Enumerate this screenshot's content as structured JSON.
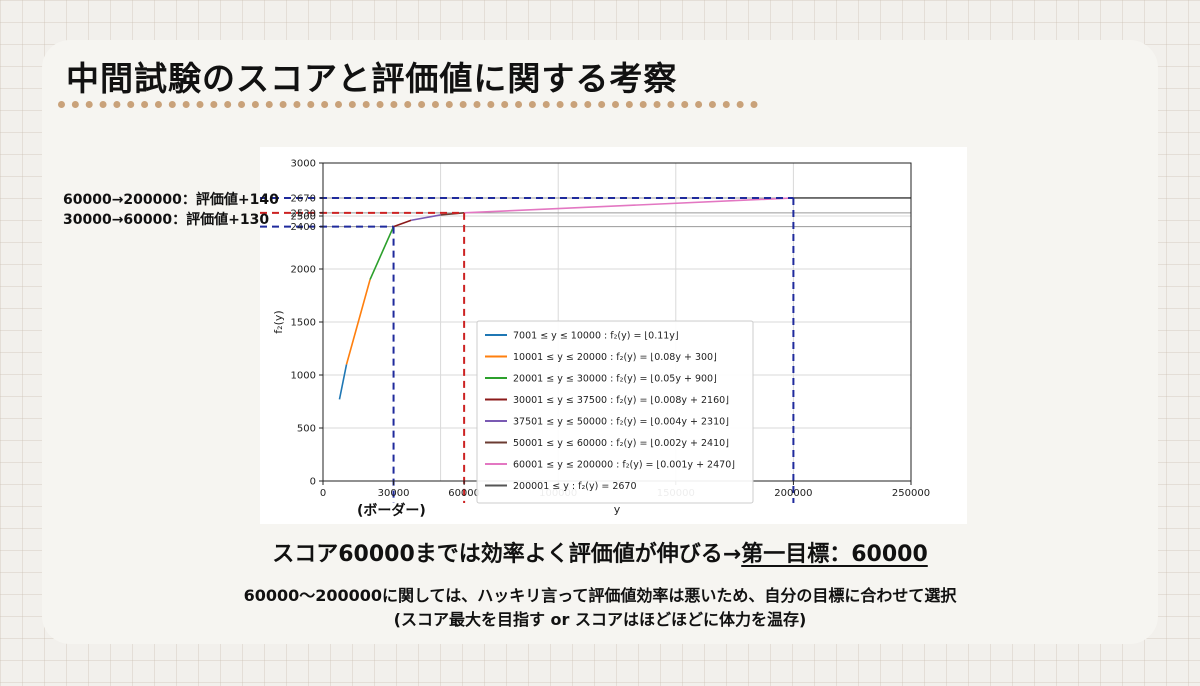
{
  "slide": {
    "title": "中間試験のスコアと評価値に関する考察",
    "side_notes": [
      "60000→200000：評価値+140",
      "30000→60000：評価値+130"
    ],
    "border_label": "(ボーダー)",
    "headline_part1": "スコア60000までは効率よく評価値が伸びる→",
    "headline_part2": "第一目標：60000",
    "note_line1": "60000〜200000に関しては、ハッキリ言って評価値効率は悪いため、自分の目標に合わせて選択",
    "note_line2": "(スコア最大を目指す or スコアはほどほどに体力を温存)"
  },
  "chart_data": {
    "type": "line",
    "xlabel": "y",
    "ylabel": "f₂(y)",
    "xlim": [
      0,
      250000
    ],
    "ylim": [
      0,
      3000
    ],
    "grid": true,
    "legend_position": "lower-right",
    "x_ticks": [
      {
        "value": 0,
        "label": "0"
      },
      {
        "value": 30000,
        "label": "30000"
      },
      {
        "value": 60000,
        "label": "60000"
      },
      {
        "value": 100000,
        "label": "100000"
      },
      {
        "value": 150000,
        "label": "150000"
      },
      {
        "value": 200000,
        "label": "200000"
      },
      {
        "value": 250000,
        "label": "250000"
      }
    ],
    "y_ticks": [
      {
        "value": 0,
        "label": "0"
      },
      {
        "value": 500,
        "label": "500"
      },
      {
        "value": 1000,
        "label": "1000"
      },
      {
        "value": 1500,
        "label": "1500"
      },
      {
        "value": 2000,
        "label": "2000"
      },
      {
        "value": 2400,
        "label": "2400"
      },
      {
        "value": 2500,
        "label": "2500"
      },
      {
        "value": 2530,
        "label": "2530"
      },
      {
        "value": 2670,
        "label": "2670"
      },
      {
        "value": 3000,
        "label": "3000"
      }
    ],
    "series": [
      {
        "name": "7001 ≤ y ≤ 10000 : f₂(y) = ⌊0.11y⌋",
        "color": "#1f77b4",
        "x": [
          7001,
          10000
        ],
        "y": [
          770,
          1100
        ]
      },
      {
        "name": "10001 ≤ y ≤ 20000 : f₂(y) = ⌊0.08y + 300⌋",
        "color": "#ff7f0e",
        "x": [
          10001,
          20000
        ],
        "y": [
          1100,
          1900
        ]
      },
      {
        "name": "20001 ≤ y ≤ 30000 : f₂(y) = ⌊0.05y + 900⌋",
        "color": "#2ca02c",
        "x": [
          20001,
          30000
        ],
        "y": [
          1900,
          2400
        ]
      },
      {
        "name": "30001 ≤ y ≤ 37500 : f₂(y) = ⌊0.008y + 2160⌋",
        "color": "#8b1a1a",
        "x": [
          30001,
          37500
        ],
        "y": [
          2400,
          2460
        ]
      },
      {
        "name": "37501 ≤ y ≤ 50000 : f₂(y) = ⌊0.004y + 2310⌋",
        "color": "#7a5ab3",
        "x": [
          37501,
          50000
        ],
        "y": [
          2460,
          2510
        ]
      },
      {
        "name": "50001 ≤ y ≤ 60000 : f₂(y) = ⌊0.002y + 2410⌋",
        "color": "#6b3b32",
        "x": [
          50001,
          60000
        ],
        "y": [
          2510,
          2530
        ]
      },
      {
        "name": "60001 ≤ y ≤ 200000 : f₂(y) = ⌊0.001y + 2470⌋",
        "color": "#e377c2",
        "x": [
          60001,
          200000
        ],
        "y": [
          2530,
          2670
        ]
      },
      {
        "name": "200001 ≤ y : f₂(y) = 2670",
        "color": "#555555",
        "x": [
          200001,
          250000
        ],
        "y": [
          2670,
          2670
        ]
      }
    ],
    "reference_lines": [
      {
        "x": 30000,
        "y": 2400,
        "color": "#1f2a9c"
      },
      {
        "x": 60000,
        "y": 2530,
        "color": "#cc2222"
      },
      {
        "x": 200000,
        "y": 2670,
        "color": "#1f2a9c"
      }
    ]
  }
}
